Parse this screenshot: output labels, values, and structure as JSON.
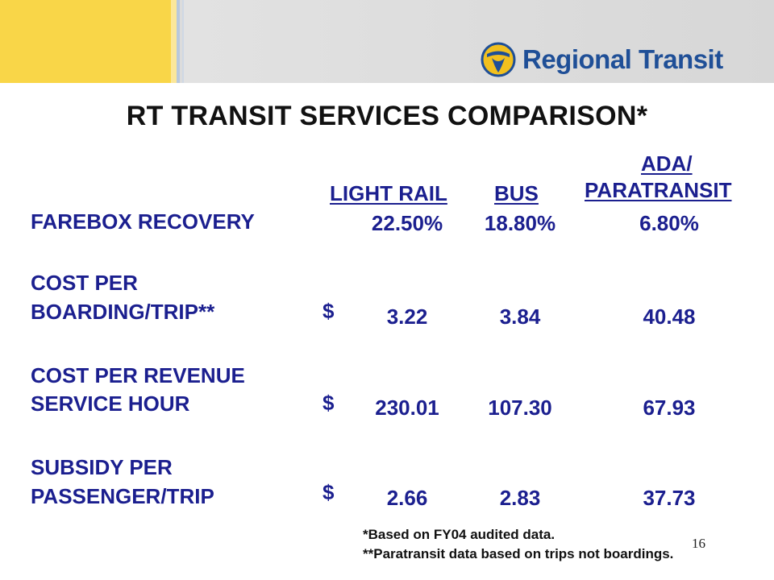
{
  "brand": {
    "name": "Regional Transit",
    "logo_icon": "rt-logo-icon",
    "accent": "#1f4f97",
    "logo_yellow": "#f2c01e"
  },
  "title": "RT TRANSIT SERVICES COMPARISON*",
  "columns": [
    {
      "lines": [
        "LIGHT RAIL"
      ]
    },
    {
      "lines": [
        "BUS"
      ]
    },
    {
      "lines": [
        "ADA/ ",
        "PARATRANSIT "
      ]
    }
  ],
  "rows": [
    {
      "label_lines": [
        "FAREBOX RECOVERY"
      ],
      "dollar": "",
      "values": [
        "22.50%",
        "18.80%",
        "6.80%"
      ]
    },
    {
      "label_lines": [
        "COST PER",
        "BOARDING/TRIP**"
      ],
      "dollar": "$",
      "values": [
        "3.22",
        "3.84",
        "40.48"
      ]
    },
    {
      "label_lines": [
        "COST PER REVENUE",
        "SERVICE HOUR"
      ],
      "dollar": "$",
      "values": [
        "230.01",
        "107.30",
        "67.93"
      ]
    },
    {
      "label_lines": [
        "SUBSIDY PER",
        "PASSENGER/TRIP"
      ],
      "dollar": "$",
      "values": [
        "2.66",
        "2.83",
        "37.73"
      ]
    }
  ],
  "footnotes": [
    "*Based on FY04 audited data.",
    "**Paratransit data based on trips not boardings."
  ],
  "page_number": "16"
}
